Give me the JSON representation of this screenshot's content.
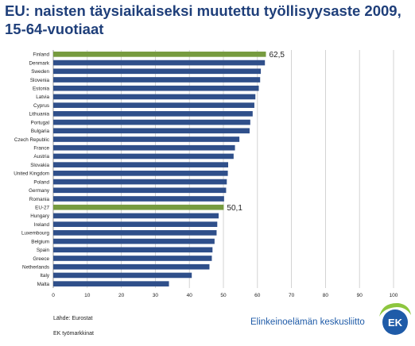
{
  "title_line1": "EU: naisten täysiaikaiseksi muutettu työllisyysaste 2009,",
  "title_line2": "15-64-vuotiaat",
  "source": "Lähde: Eurostat",
  "footer_note": "EK työmarkkinat",
  "logo_text": "Elinkeinoelämän keskusliitto",
  "logo_mark": "EK",
  "colors": {
    "bar": "#2f4f8a",
    "highlight": "#769b3f",
    "title": "#1f3f7a",
    "grid": "#c8c8c8"
  },
  "chart_data": {
    "type": "bar",
    "orientation": "horizontal",
    "title": "EU: naisten täysiaikaiseksi muutettu työllisyysaste 2009, 15-64-vuotiaat",
    "xlim": [
      0,
      100
    ],
    "xticks": [
      0,
      10,
      20,
      30,
      40,
      50,
      60,
      70,
      80,
      90,
      100
    ],
    "grid": true,
    "categories": [
      "Finland",
      "Denmark",
      "Sweden",
      "Slovenia",
      "Estonia",
      "Latvia",
      "Cyprus",
      "Lithuania",
      "Portugal",
      "Bulgaria",
      "Czech Republic",
      "France",
      "Austria",
      "Slovakia",
      "United Kingdom",
      "Poland",
      "Germany",
      "Romania",
      "EU-27",
      "Hungary",
      "Ireland",
      "Luxembourg",
      "Belgium",
      "Spain",
      "Greece",
      "Netherlands",
      "Italy",
      "Malta"
    ],
    "values": [
      62.5,
      62.2,
      61,
      60.8,
      60.4,
      59.4,
      59.1,
      58.6,
      57.9,
      57.7,
      54.7,
      53.4,
      53,
      51.4,
      51.3,
      51,
      50.8,
      50.2,
      50.1,
      48.6,
      48.2,
      48,
      47.4,
      46.8,
      46.6,
      45.9,
      40.7,
      34
    ],
    "highlight": [
      "Finland",
      "EU-27"
    ],
    "data_labels": [
      {
        "category": "Finland",
        "text": "62,5"
      },
      {
        "category": "EU-27",
        "text": "50,1"
      }
    ]
  }
}
